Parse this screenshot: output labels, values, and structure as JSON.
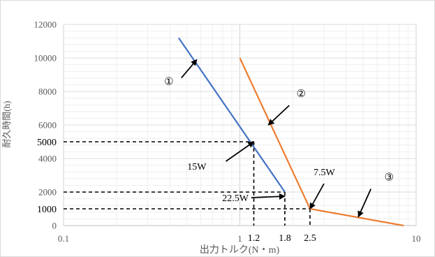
{
  "chart_data": {
    "type": "line",
    "xlabel": "出力トルク(N・m)",
    "ylabel": "耐久時間(h)",
    "x_scale": "log",
    "xlim": [
      0.1,
      10
    ],
    "ylim": [
      0,
      12000
    ],
    "x_tick_labels": [
      {
        "value": 0.1,
        "label": "0.1"
      },
      {
        "value": 1,
        "label": "1"
      },
      {
        "value": 10,
        "label": "10"
      }
    ],
    "x_marker_labels": [
      {
        "value": 1.2,
        "label": "1.2"
      },
      {
        "value": 1.8,
        "label": "1.8"
      },
      {
        "value": 2.5,
        "label": "2.5"
      }
    ],
    "y_tick_labels": [
      {
        "value": 0,
        "label": "0"
      },
      {
        "value": 2000,
        "label": "2000"
      },
      {
        "value": 4000,
        "label": "4000"
      },
      {
        "value": 6000,
        "label": "6000"
      },
      {
        "value": 8000,
        "label": "8000"
      },
      {
        "value": 10000,
        "label": "10000"
      },
      {
        "value": 12000,
        "label": "12000"
      }
    ],
    "y_marker_labels": [
      {
        "value": 1000,
        "label": "1000"
      },
      {
        "value": 5000,
        "label": "5000"
      }
    ],
    "grid": true,
    "series": [
      {
        "color": "#4472C4",
        "points": [
          [
            0.45,
            11200
          ],
          [
            1.8,
            2000
          ]
        ]
      },
      {
        "color": "#ED7D31",
        "points": [
          [
            1.0,
            10000
          ],
          [
            2.5,
            1000
          ],
          [
            8.5,
            0
          ]
        ]
      }
    ],
    "reference_lines": [
      {
        "x": 1.2,
        "y": 5000
      },
      {
        "x": 1.8,
        "y": 2000
      },
      {
        "x": 2.5,
        "y": 1000
      }
    ],
    "annotations": [
      {
        "text": "①",
        "target": [
          0.57,
          9900
        ]
      },
      {
        "text": "②",
        "target": [
          1.45,
          6000
        ]
      },
      {
        "text": "③",
        "target": [
          4.7,
          520
        ]
      },
      {
        "text": "15W",
        "target": [
          1.2,
          5000
        ]
      },
      {
        "text": "22.5W",
        "target": [
          1.8,
          1750
        ]
      },
      {
        "text": "7.5W",
        "target": [
          2.5,
          1000
        ]
      }
    ]
  }
}
